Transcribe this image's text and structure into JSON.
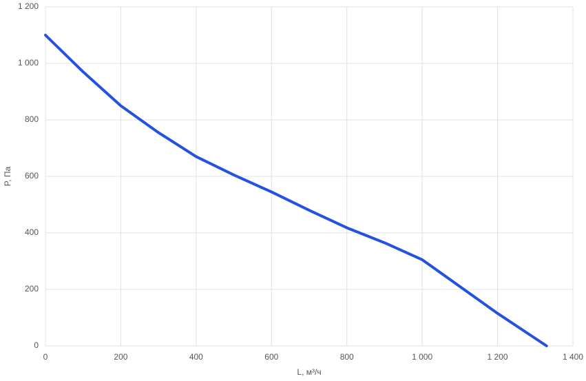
{
  "chart_data": {
    "type": "line",
    "x_label": "L, м³/ч",
    "y_label": "P, Па",
    "x": [
      0,
      100,
      200,
      300,
      400,
      500,
      600,
      700,
      800,
      900,
      1000,
      1100,
      1200,
      1330
    ],
    "series": [
      {
        "name": "P",
        "color": "#2452e0",
        "values": [
          1100,
          970,
          850,
          755,
          670,
          605,
          545,
          480,
          418,
          365,
          305,
          210,
          115,
          0
        ]
      }
    ],
    "xlim": [
      0,
      1400
    ],
    "xticks": [
      0,
      200,
      400,
      600,
      800,
      {
        "value": 1000,
        "label": "1 000"
      },
      {
        "value": 1200,
        "label": "1 200"
      },
      {
        "value": 1400,
        "label": "1 400"
      }
    ],
    "ylim": [
      0,
      1200
    ],
    "yticks": [
      0,
      200,
      400,
      600,
      800,
      {
        "value": 1000,
        "label": "1 000"
      },
      {
        "value": 1200,
        "label": "1 200"
      }
    ],
    "grid": true
  }
}
